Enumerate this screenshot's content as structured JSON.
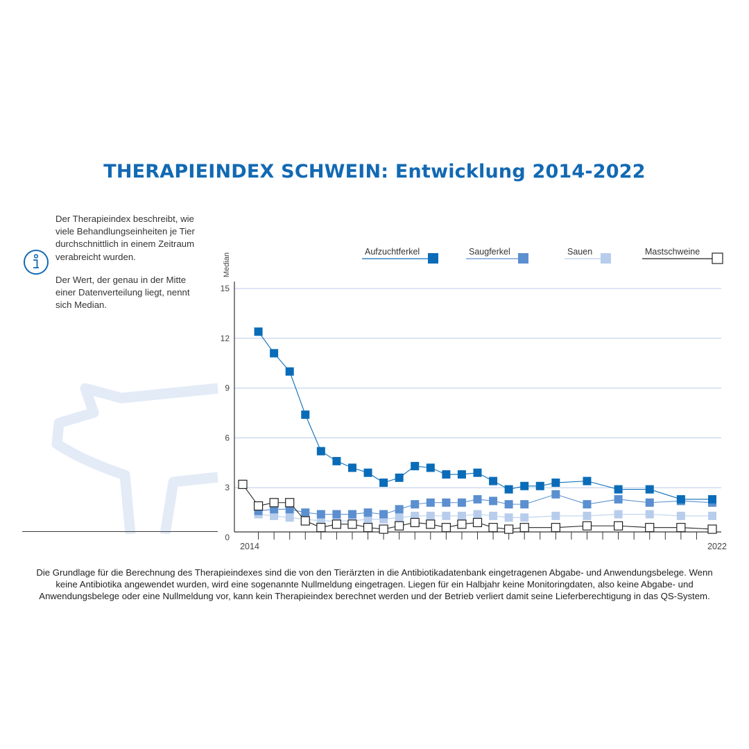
{
  "page": {
    "title": "THERAPIEINDEX SCHWEIN: Entwicklung 2014-2022",
    "info_paragraph_1": "Der Therapieindex beschreibt, wie viele Behandlungseinheiten je Tier durchschnittlich in einem Zeitraum verabreicht wurden.",
    "info_paragraph_2": "Der Wert, der genau in der Mitte einer Datenverteilung liegt, nennt sich Median.",
    "footnote": "Die Grundlage für die Berechnung des Therapieindexes sind die von den Tierärzten in die Antibiotikadatenbank eingetragenen Abgabe- und Anwendungsbelege. Wenn keine Antibiotika angewendet wurden, wird eine sogenannte Nullmeldung eingetragen. Liegen für ein Halbjahr keine Monitoringdaten, also keine Abgabe- und Anwendungsbelege oder eine Nullmeldung vor, kann kein Therapieindex berechnet werden und der Betrieb verliert damit seine Lieferberechtigung in das QS-System."
  },
  "colors": {
    "title": "#1269b3",
    "aufzuchtferkel": "#0a6cb8",
    "saugferkel": "#5b8fd0",
    "sauen": "#b8cdec",
    "mastschweine": "#ffffff",
    "mastschweine_stroke": "#222222",
    "gridline": "#b7cbe8",
    "pig_outline": "#e3ebf7"
  },
  "chart_data": {
    "type": "line",
    "ylabel": "Median",
    "xlabel": "",
    "ylim": [
      0,
      15
    ],
    "yticks": [
      0,
      3,
      6,
      9,
      12,
      15
    ],
    "x_tick_labels": [
      {
        "index": 0,
        "label": "2014"
      },
      {
        "index": 30,
        "label": "2022"
      }
    ],
    "grid": true,
    "legend_position": "top",
    "series": [
      {
        "name": "Aufzuchtferkel",
        "marker": "filled-square",
        "x": [
          1,
          2,
          3,
          4,
          5,
          6,
          7,
          8,
          9,
          10,
          11,
          12,
          13,
          14,
          15,
          16,
          17,
          18,
          19,
          20,
          22,
          24,
          26,
          28,
          30
        ],
        "values": [
          12.4,
          11.1,
          10.0,
          7.4,
          5.2,
          4.6,
          4.2,
          3.9,
          3.3,
          3.6,
          4.3,
          4.2,
          3.8,
          3.8,
          3.9,
          3.4,
          2.9,
          3.1,
          3.1,
          3.3,
          3.4,
          2.9,
          2.9,
          2.3,
          2.3
        ]
      },
      {
        "name": "Saugferkel",
        "marker": "filled-square",
        "x": [
          1,
          2,
          3,
          4,
          5,
          6,
          7,
          8,
          9,
          10,
          11,
          12,
          13,
          14,
          15,
          16,
          17,
          18,
          20,
          22,
          24,
          26,
          28,
          30
        ],
        "values": [
          1.6,
          1.7,
          1.7,
          1.5,
          1.4,
          1.4,
          1.4,
          1.5,
          1.4,
          1.7,
          2.0,
          2.1,
          2.1,
          2.1,
          2.3,
          2.2,
          2.0,
          2.0,
          2.6,
          2.0,
          2.3,
          2.1,
          2.2,
          2.1
        ]
      },
      {
        "name": "Sauen",
        "marker": "filled-square",
        "x": [
          1,
          2,
          3,
          4,
          5,
          6,
          7,
          8,
          9,
          10,
          11,
          12,
          13,
          14,
          15,
          16,
          17,
          18,
          20,
          22,
          24,
          26,
          28,
          30
        ],
        "values": [
          1.4,
          1.3,
          1.2,
          1.1,
          1.0,
          1.0,
          1.0,
          1.1,
          1.1,
          1.2,
          1.3,
          1.3,
          1.3,
          1.3,
          1.4,
          1.3,
          1.2,
          1.2,
          1.3,
          1.3,
          1.4,
          1.4,
          1.3,
          1.3
        ]
      },
      {
        "name": "Mastschweine",
        "marker": "open-square",
        "x": [
          0,
          1,
          2,
          3,
          4,
          5,
          6,
          7,
          8,
          9,
          10,
          11,
          12,
          13,
          14,
          15,
          16,
          17,
          18,
          20,
          22,
          24,
          26,
          28,
          30
        ],
        "values": [
          3.2,
          1.9,
          2.1,
          2.1,
          1.0,
          0.6,
          0.8,
          0.8,
          0.6,
          0.5,
          0.7,
          0.9,
          0.8,
          0.6,
          0.8,
          0.9,
          0.6,
          0.5,
          0.6,
          0.6,
          0.7,
          0.7,
          0.6,
          0.6,
          0.5
        ]
      }
    ]
  }
}
